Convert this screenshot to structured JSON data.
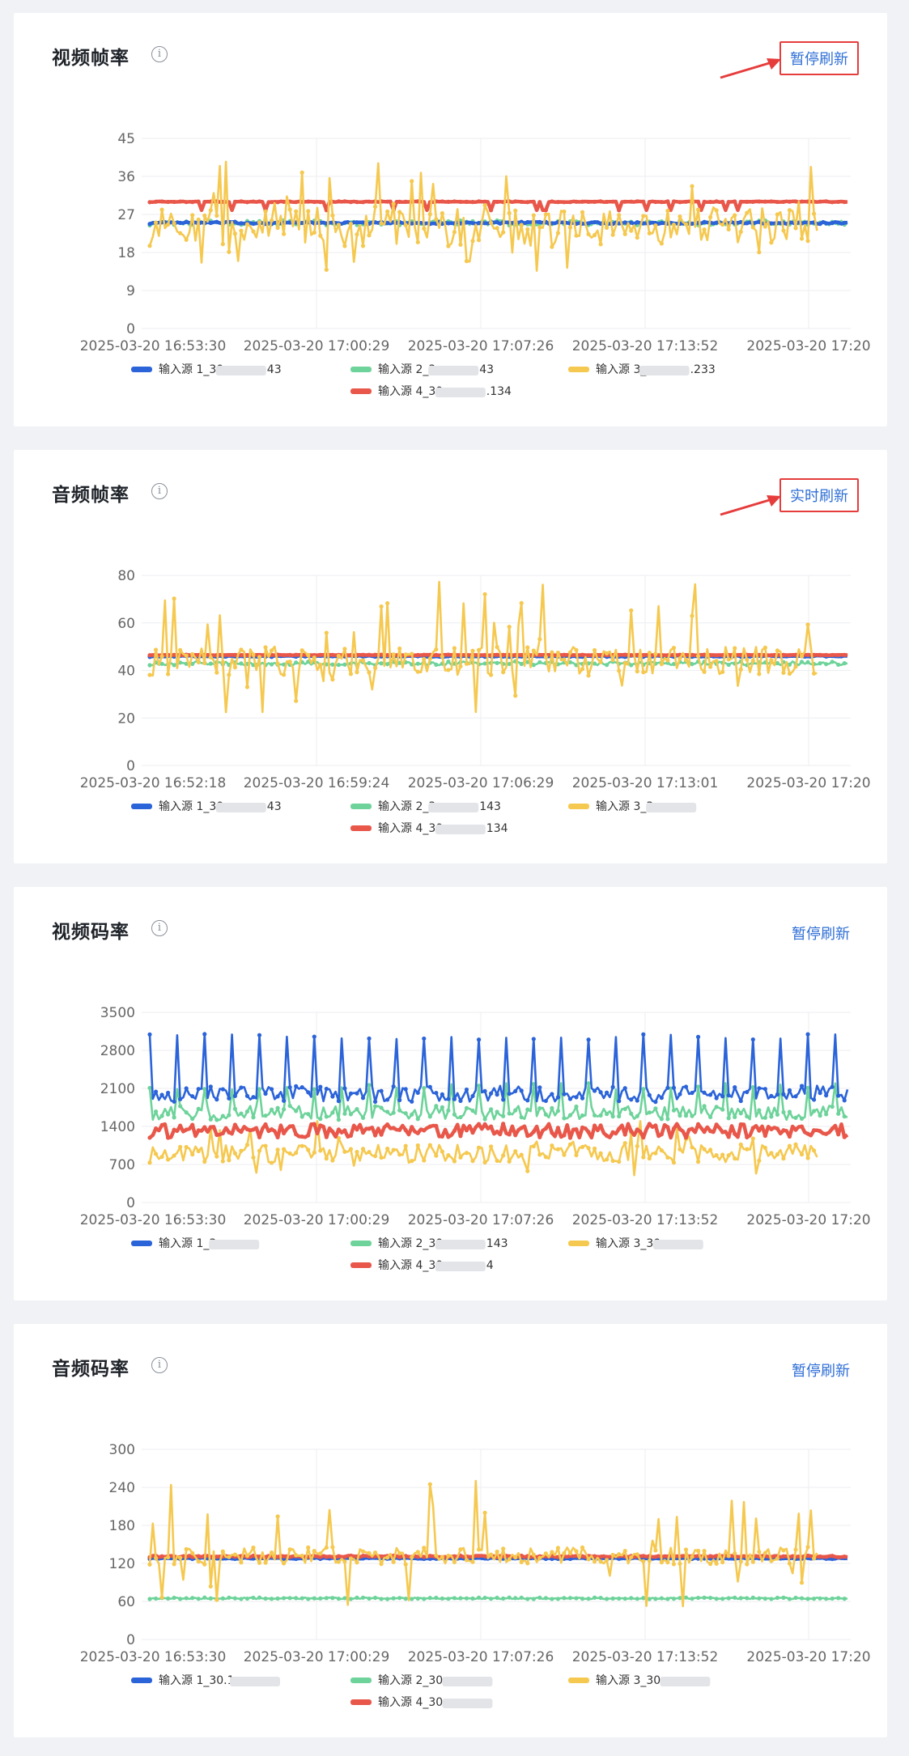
{
  "colors": {
    "blue": "#2b63d9",
    "green": "#6dd39a",
    "yellow": "#f5c84f",
    "red": "#e8574a",
    "grid": "#eceef2",
    "axis_text": "#666666",
    "annotation_red": "#e63c3c",
    "link": "#2f6fd6"
  },
  "cards": [
    {
      "title": "视频帧率",
      "info_icon": "info-icon",
      "button_label": "暂停刷新",
      "highlighted": true,
      "chart_data": {
        "type": "line",
        "title": "视频帧率",
        "xlabel": "",
        "ylabel": "",
        "ylim": [
          0,
          45
        ],
        "y_ticks": [
          0,
          9,
          18,
          27,
          36,
          45
        ],
        "x_tick_labels": [
          "2025-03-20 16:53:30",
          "2025-03-20 17:00:29",
          "2025-03-20 17:07:26",
          "2025-03-20 17:13:52",
          "2025-03-20 17:20"
        ],
        "grid": true,
        "legend_position": "bottom",
        "series": [
          {
            "name": "输入源 1_30",
            "suffix": "43",
            "color": "blue",
            "base": 25,
            "noise": 0.25,
            "spike": 0
          },
          {
            "name": "输入源 2_3",
            "suffix": "43",
            "color": "green",
            "base": 25,
            "noise": 0.6,
            "spike": 0
          },
          {
            "name": "输入源 3_",
            "suffix": ".233",
            "color": "yellow",
            "base": 24,
            "noise": 4.5,
            "spike": 13,
            "range": [
              2,
              44
            ]
          },
          {
            "name": "输入源 4_30",
            "suffix": ".134",
            "color": "red",
            "base": 30,
            "noise": 0.1,
            "spike": 0,
            "dip": 28
          }
        ]
      }
    },
    {
      "title": "音频帧率",
      "info_icon": "info-icon",
      "button_label": "实时刷新",
      "highlighted": true,
      "chart_data": {
        "type": "line",
        "title": "音频帧率",
        "xlabel": "",
        "ylabel": "",
        "ylim": [
          0,
          80
        ],
        "y_ticks": [
          0,
          20,
          40,
          60,
          80
        ],
        "x_tick_labels": [
          "2025-03-20 16:52:18",
          "2025-03-20 16:59:24",
          "2025-03-20 17:06:29",
          "2025-03-20 17:13:01",
          "2025-03-20 17:20"
        ],
        "grid": true,
        "legend_position": "bottom",
        "series": [
          {
            "name": "输入源 1_30",
            "suffix": "43",
            "color": "blue",
            "base": 46,
            "noise": 0.3,
            "spike": 0
          },
          {
            "name": "输入源 2_3",
            "suffix": "143",
            "color": "green",
            "base": 43,
            "noise": 0.8,
            "spike": 0
          },
          {
            "name": "输入源 3_3",
            "suffix": "",
            "color": "yellow",
            "base": 44,
            "noise": 6,
            "spike": 30,
            "range": [
              9,
              78
            ]
          },
          {
            "name": "输入源 4_30",
            "suffix": "134",
            "color": "red",
            "base": 46.5,
            "noise": 0.1,
            "spike": 0
          }
        ]
      }
    },
    {
      "title": "视频码率",
      "info_icon": "info-icon",
      "button_label": "暂停刷新",
      "highlighted": false,
      "chart_data": {
        "type": "line",
        "title": "视频码率",
        "xlabel": "",
        "ylabel": "",
        "ylim": [
          0,
          3500
        ],
        "y_ticks": [
          0,
          700,
          1400,
          2100,
          2800,
          3500
        ],
        "x_tick_labels": [
          "2025-03-20 16:53:30",
          "2025-03-20 17:00:29",
          "2025-03-20 17:07:26",
          "2025-03-20 17:13:52",
          "2025-03-20 17:20"
        ],
        "grid": true,
        "legend_position": "bottom",
        "series": [
          {
            "name": "输入源 1_3",
            "suffix": "",
            "color": "blue",
            "base": 2000,
            "noise": 150,
            "periodic_peak": 3100
          },
          {
            "name": "输入源 2_30",
            "suffix": "143",
            "color": "green",
            "base": 1650,
            "noise": 130,
            "periodic_peak": 2200
          },
          {
            "name": "输入源 3_30",
            "suffix": "",
            "color": "yellow",
            "base": 900,
            "noise": 170,
            "spike": 500,
            "range": [
              100,
              1800
            ]
          },
          {
            "name": "输入源 4_30",
            "suffix": "4",
            "color": "red",
            "base": 1320,
            "noise": 130
          }
        ]
      }
    },
    {
      "title": "音频码率",
      "info_icon": "info-icon",
      "button_label": "暂停刷新",
      "highlighted": false,
      "chart_data": {
        "type": "line",
        "title": "音频码率",
        "xlabel": "",
        "ylabel": "",
        "ylim": [
          0,
          300
        ],
        "y_ticks": [
          0,
          60,
          120,
          180,
          240,
          300
        ],
        "x_tick_labels": [
          "2025-03-20 16:53:30",
          "2025-03-20 17:00:29",
          "2025-03-20 17:07:26",
          "2025-03-20 17:13:52",
          "2025-03-20 17:20"
        ],
        "grid": true,
        "legend_position": "bottom",
        "series": [
          {
            "name": "输入源 1_30.1",
            "suffix": "",
            "color": "blue",
            "base": 128,
            "noise": 1,
            "spike": 0
          },
          {
            "name": "输入源 2_30.",
            "suffix": "",
            "color": "green",
            "base": 65,
            "noise": 1.2,
            "spike": 0
          },
          {
            "name": "输入源 3_30.",
            "suffix": "",
            "color": "yellow",
            "base": 132,
            "noise": 14,
            "spike": 100,
            "range": [
              28,
              258
            ]
          },
          {
            "name": "输入源 4_30.",
            "suffix": "",
            "color": "red",
            "base": 131,
            "noise": 1.2,
            "spike": 0
          }
        ]
      }
    }
  ]
}
